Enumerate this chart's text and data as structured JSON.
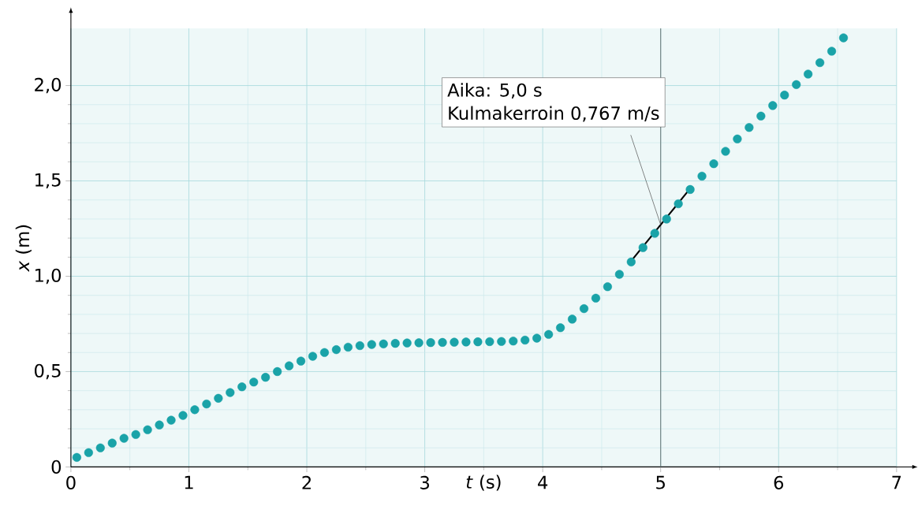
{
  "chart_data": {
    "type": "scatter",
    "xlabel": "*t* (s)",
    "ylabel": "*x* (m)",
    "xlim": [
      0,
      7
    ],
    "ylim": [
      0,
      2.3
    ],
    "xticks": [
      0,
      1,
      2,
      3,
      4,
      5,
      6,
      7
    ],
    "yticks": [
      0,
      {
        "value": 0.5,
        "label": "0,5"
      },
      {
        "value": 1.0,
        "label": "1,0"
      },
      {
        "value": 1.5,
        "label": "1,5"
      },
      {
        "value": 2.0,
        "label": "2,0"
      }
    ],
    "grid": true,
    "marker": "circle",
    "ref_lines": [
      {
        "axis": "x",
        "value": 5,
        "color": "#6b7b7b"
      }
    ],
    "annotations": [
      "Aika: 5,0 s",
      {
        "text": "Kulmakerroin 0,767 m/s",
        "x": 5,
        "y": 1.27
      }
    ],
    "series": [
      {
        "color": "#1aa3a8",
        "x": [
          0.05,
          0.15,
          0.25,
          0.35,
          0.45,
          0.55,
          0.65,
          0.75,
          0.85,
          0.95,
          1.05,
          1.15,
          1.25,
          1.35,
          1.45,
          1.55,
          1.65,
          1.75,
          1.85,
          1.95,
          2.05,
          2.15,
          2.25,
          2.35,
          2.45,
          2.55,
          2.65,
          2.75,
          2.85,
          2.95,
          3.05,
          3.15,
          3.25,
          3.35,
          3.45,
          3.55,
          3.65,
          3.75,
          3.85,
          3.95,
          4.05,
          4.15,
          4.25,
          4.35,
          4.45,
          4.55,
          4.65,
          4.75,
          4.85,
          4.95,
          5.05,
          5.15,
          5.25,
          5.35,
          5.45,
          5.55,
          5.65,
          5.75,
          5.85,
          5.95,
          6.05,
          6.15,
          6.25,
          6.35,
          6.45,
          6.55
        ],
        "values": [
          0.05,
          0.075,
          0.1,
          0.125,
          0.15,
          0.17,
          0.195,
          0.22,
          0.245,
          0.27,
          0.3,
          0.33,
          0.36,
          0.39,
          0.42,
          0.445,
          0.47,
          0.5,
          0.53,
          0.555,
          0.58,
          0.6,
          0.615,
          0.628,
          0.636,
          0.642,
          0.645,
          0.648,
          0.65,
          0.651,
          0.652,
          0.653,
          0.654,
          0.655,
          0.656,
          0.657,
          0.658,
          0.66,
          0.665,
          0.675,
          0.695,
          0.73,
          0.775,
          0.83,
          0.885,
          0.945,
          1.01,
          1.075,
          1.15,
          1.225,
          1.3,
          1.38,
          1.455,
          1.525,
          1.59,
          1.655,
          1.72,
          1.78,
          1.84,
          1.895,
          1.95,
          2.005,
          2.06,
          2.12,
          2.18,
          2.25
        ]
      },
      {
        "type": "line",
        "marker": "none",
        "color": "#000000",
        "x": [
          4.75,
          5.25
        ],
        "values": [
          1.08,
          1.46
        ]
      }
    ]
  }
}
